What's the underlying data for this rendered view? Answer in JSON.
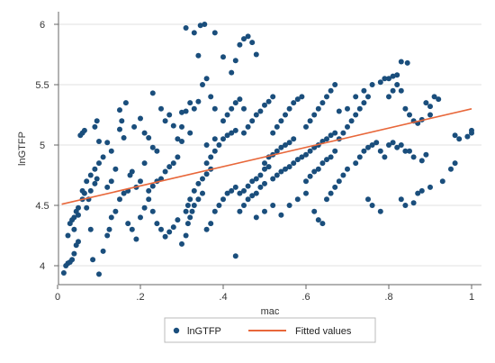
{
  "chart_data": {
    "type": "scatter",
    "xlabel": "mac",
    "ylabel": "lnGTFP",
    "xlim": [
      0,
      1
    ],
    "ylim": [
      3.85,
      6.05
    ],
    "x_ticks": [
      0,
      0.2,
      0.4,
      0.6,
      0.8,
      1
    ],
    "x_tick_labels": [
      "0",
      ".2",
      ".4",
      ".6",
      ".8",
      "1"
    ],
    "y_ticks": [
      4,
      4.5,
      5,
      5.5,
      6
    ],
    "y_tick_labels": [
      "4",
      "4.5",
      "5",
      "5.5",
      "6"
    ],
    "grid": "horizontal",
    "legend_position": "bottom",
    "colors": {
      "scatter": "#1a4e7c",
      "fit": "#e8673a",
      "grid": "#e2e2e2",
      "axis": "#666666"
    },
    "series": [
      {
        "name": "lnGTFP",
        "kind": "scatter",
        "points": [
          [
            0.015,
            3.94
          ],
          [
            0.02,
            4.0
          ],
          [
            0.025,
            4.02
          ],
          [
            0.03,
            4.03
          ],
          [
            0.035,
            4.05
          ],
          [
            0.04,
            4.1
          ],
          [
            0.045,
            4.17
          ],
          [
            0.05,
            4.2
          ],
          [
            0.025,
            4.25
          ],
          [
            0.03,
            4.35
          ],
          [
            0.035,
            4.38
          ],
          [
            0.04,
            4.4
          ],
          [
            0.045,
            4.45
          ],
          [
            0.05,
            4.48
          ],
          [
            0.06,
            4.55
          ],
          [
            0.065,
            4.6
          ],
          [
            0.04,
            4.3
          ],
          [
            0.05,
            4.42
          ],
          [
            0.06,
            4.62
          ],
          [
            0.07,
            4.7
          ],
          [
            0.08,
            4.75
          ],
          [
            0.09,
            4.8
          ],
          [
            0.1,
            4.85
          ],
          [
            0.11,
            4.9
          ],
          [
            0.055,
            5.08
          ],
          [
            0.06,
            5.1
          ],
          [
            0.065,
            5.12
          ],
          [
            0.09,
            5.15
          ],
          [
            0.095,
            5.2
          ],
          [
            0.1,
            5.03
          ],
          [
            0.12,
            5.02
          ],
          [
            0.13,
            4.95
          ],
          [
            0.08,
            4.3
          ],
          [
            0.085,
            4.05
          ],
          [
            0.1,
            3.93
          ],
          [
            0.11,
            4.12
          ],
          [
            0.12,
            4.25
          ],
          [
            0.125,
            4.3
          ],
          [
            0.13,
            4.4
          ],
          [
            0.14,
            4.45
          ],
          [
            0.07,
            4.48
          ],
          [
            0.075,
            4.55
          ],
          [
            0.08,
            4.62
          ],
          [
            0.09,
            4.68
          ],
          [
            0.095,
            4.72
          ],
          [
            0.12,
            4.65
          ],
          [
            0.13,
            4.7
          ],
          [
            0.14,
            4.8
          ],
          [
            0.15,
            4.55
          ],
          [
            0.16,
            4.6
          ],
          [
            0.17,
            4.62
          ],
          [
            0.175,
            4.75
          ],
          [
            0.18,
            4.78
          ],
          [
            0.19,
            4.65
          ],
          [
            0.2,
            4.7
          ],
          [
            0.21,
            4.85
          ],
          [
            0.15,
            5.13
          ],
          [
            0.155,
            5.2
          ],
          [
            0.16,
            5.06
          ],
          [
            0.17,
            4.35
          ],
          [
            0.18,
            4.3
          ],
          [
            0.19,
            4.22
          ],
          [
            0.2,
            4.4
          ],
          [
            0.21,
            4.48
          ],
          [
            0.15,
            5.29
          ],
          [
            0.165,
            5.35
          ],
          [
            0.185,
            5.15
          ],
          [
            0.2,
            5.22
          ],
          [
            0.21,
            5.1
          ],
          [
            0.22,
            5.06
          ],
          [
            0.23,
            4.98
          ],
          [
            0.24,
            4.95
          ],
          [
            0.22,
            4.62
          ],
          [
            0.23,
            4.66
          ],
          [
            0.24,
            4.7
          ],
          [
            0.25,
            4.72
          ],
          [
            0.26,
            4.78
          ],
          [
            0.27,
            4.82
          ],
          [
            0.28,
            4.85
          ],
          [
            0.29,
            4.9
          ],
          [
            0.22,
            4.55
          ],
          [
            0.23,
            4.45
          ],
          [
            0.24,
            4.35
          ],
          [
            0.25,
            4.3
          ],
          [
            0.26,
            4.24
          ],
          [
            0.27,
            4.28
          ],
          [
            0.28,
            4.32
          ],
          [
            0.29,
            4.38
          ],
          [
            0.23,
            5.43
          ],
          [
            0.25,
            5.3
          ],
          [
            0.26,
            5.2
          ],
          [
            0.27,
            5.25
          ],
          [
            0.28,
            5.16
          ],
          [
            0.29,
            5.05
          ],
          [
            0.3,
            5.03
          ],
          [
            0.3,
            5.27
          ],
          [
            0.3,
            4.18
          ],
          [
            0.31,
            4.25
          ],
          [
            0.315,
            4.35
          ],
          [
            0.32,
            4.4
          ],
          [
            0.325,
            4.45
          ],
          [
            0.33,
            4.5
          ],
          [
            0.34,
            4.55
          ],
          [
            0.35,
            4.6
          ],
          [
            0.31,
            4.45
          ],
          [
            0.315,
            4.5
          ],
          [
            0.32,
            4.55
          ],
          [
            0.33,
            4.62
          ],
          [
            0.34,
            4.68
          ],
          [
            0.35,
            4.72
          ],
          [
            0.36,
            4.76
          ],
          [
            0.37,
            4.8
          ],
          [
            0.31,
            5.28
          ],
          [
            0.32,
            5.35
          ],
          [
            0.33,
            5.3
          ],
          [
            0.34,
            5.36
          ],
          [
            0.35,
            5.5
          ],
          [
            0.36,
            5.55
          ],
          [
            0.37,
            5.4
          ],
          [
            0.38,
            5.3
          ],
          [
            0.31,
            5.97
          ],
          [
            0.33,
            5.93
          ],
          [
            0.345,
            5.99
          ],
          [
            0.355,
            6.0
          ],
          [
            0.38,
            5.93
          ],
          [
            0.34,
            5.74
          ],
          [
            0.3,
            5.15
          ],
          [
            0.32,
            5.1
          ],
          [
            0.36,
            4.3
          ],
          [
            0.37,
            4.35
          ],
          [
            0.38,
            4.45
          ],
          [
            0.39,
            4.5
          ],
          [
            0.4,
            4.55
          ],
          [
            0.41,
            4.6
          ],
          [
            0.42,
            4.62
          ],
          [
            0.43,
            4.65
          ],
          [
            0.36,
            4.85
          ],
          [
            0.37,
            4.9
          ],
          [
            0.38,
            4.95
          ],
          [
            0.39,
            5.0
          ],
          [
            0.4,
            5.05
          ],
          [
            0.41,
            5.08
          ],
          [
            0.42,
            5.1
          ],
          [
            0.43,
            5.12
          ],
          [
            0.36,
            5.0
          ],
          [
            0.38,
            5.05
          ],
          [
            0.4,
            5.2
          ],
          [
            0.41,
            5.25
          ],
          [
            0.42,
            5.3
          ],
          [
            0.43,
            5.35
          ],
          [
            0.44,
            5.38
          ],
          [
            0.45,
            5.3
          ],
          [
            0.4,
            5.73
          ],
          [
            0.42,
            5.6
          ],
          [
            0.43,
            5.7
          ],
          [
            0.44,
            5.83
          ],
          [
            0.45,
            5.88
          ],
          [
            0.46,
            5.9
          ],
          [
            0.47,
            5.85
          ],
          [
            0.48,
            5.75
          ],
          [
            0.43,
            4.08
          ],
          [
            0.44,
            4.45
          ],
          [
            0.45,
            4.5
          ],
          [
            0.46,
            4.55
          ],
          [
            0.47,
            4.58
          ],
          [
            0.48,
            4.6
          ],
          [
            0.49,
            4.65
          ],
          [
            0.5,
            4.68
          ],
          [
            0.44,
            4.6
          ],
          [
            0.45,
            4.62
          ],
          [
            0.46,
            4.66
          ],
          [
            0.47,
            4.7
          ],
          [
            0.48,
            4.72
          ],
          [
            0.49,
            4.75
          ],
          [
            0.5,
            4.8
          ],
          [
            0.51,
            4.82
          ],
          [
            0.45,
            5.1
          ],
          [
            0.46,
            5.15
          ],
          [
            0.47,
            5.2
          ],
          [
            0.48,
            5.25
          ],
          [
            0.49,
            5.28
          ],
          [
            0.5,
            5.33
          ],
          [
            0.51,
            5.36
          ],
          [
            0.52,
            5.4
          ],
          [
            0.48,
            4.4
          ],
          [
            0.5,
            4.45
          ],
          [
            0.52,
            4.5
          ],
          [
            0.54,
            4.42
          ],
          [
            0.56,
            4.5
          ],
          [
            0.58,
            4.55
          ],
          [
            0.6,
            4.6
          ],
          [
            0.62,
            4.45
          ],
          [
            0.5,
            4.85
          ],
          [
            0.51,
            4.9
          ],
          [
            0.52,
            4.92
          ],
          [
            0.53,
            4.95
          ],
          [
            0.54,
            4.98
          ],
          [
            0.55,
            5.0
          ],
          [
            0.56,
            5.02
          ],
          [
            0.57,
            5.05
          ],
          [
            0.52,
            4.72
          ],
          [
            0.53,
            4.75
          ],
          [
            0.54,
            4.78
          ],
          [
            0.55,
            4.8
          ],
          [
            0.56,
            4.82
          ],
          [
            0.57,
            4.85
          ],
          [
            0.58,
            4.88
          ],
          [
            0.59,
            4.9
          ],
          [
            0.52,
            5.1
          ],
          [
            0.53,
            5.15
          ],
          [
            0.54,
            5.2
          ],
          [
            0.55,
            5.25
          ],
          [
            0.56,
            5.3
          ],
          [
            0.57,
            5.35
          ],
          [
            0.58,
            5.38
          ],
          [
            0.59,
            5.4
          ],
          [
            0.6,
            4.92
          ],
          [
            0.61,
            4.95
          ],
          [
            0.62,
            4.98
          ],
          [
            0.63,
            5.0
          ],
          [
            0.64,
            5.03
          ],
          [
            0.65,
            5.05
          ],
          [
            0.66,
            5.08
          ],
          [
            0.67,
            5.1
          ],
          [
            0.6,
            4.7
          ],
          [
            0.61,
            4.74
          ],
          [
            0.62,
            4.78
          ],
          [
            0.63,
            4.8
          ],
          [
            0.64,
            4.85
          ],
          [
            0.65,
            4.88
          ],
          [
            0.66,
            4.9
          ],
          [
            0.67,
            4.95
          ],
          [
            0.6,
            5.15
          ],
          [
            0.61,
            5.2
          ],
          [
            0.62,
            5.25
          ],
          [
            0.63,
            5.3
          ],
          [
            0.64,
            5.35
          ],
          [
            0.65,
            5.4
          ],
          [
            0.66,
            5.45
          ],
          [
            0.67,
            5.5
          ],
          [
            0.63,
            4.38
          ],
          [
            0.64,
            4.35
          ],
          [
            0.65,
            4.55
          ],
          [
            0.66,
            4.6
          ],
          [
            0.67,
            4.65
          ],
          [
            0.68,
            4.7
          ],
          [
            0.69,
            4.75
          ],
          [
            0.7,
            4.8
          ],
          [
            0.68,
            5.05
          ],
          [
            0.69,
            5.1
          ],
          [
            0.7,
            5.15
          ],
          [
            0.71,
            5.2
          ],
          [
            0.72,
            5.25
          ],
          [
            0.73,
            5.3
          ],
          [
            0.74,
            5.35
          ],
          [
            0.75,
            5.4
          ],
          [
            0.68,
            5.28
          ],
          [
            0.7,
            5.3
          ],
          [
            0.72,
            5.4
          ],
          [
            0.74,
            5.45
          ],
          [
            0.76,
            5.5
          ],
          [
            0.78,
            5.52
          ],
          [
            0.8,
            5.55
          ],
          [
            0.82,
            5.58
          ],
          [
            0.72,
            4.85
          ],
          [
            0.73,
            4.9
          ],
          [
            0.74,
            4.95
          ],
          [
            0.75,
            4.98
          ],
          [
            0.76,
            5.0
          ],
          [
            0.77,
            5.02
          ],
          [
            0.78,
            4.95
          ],
          [
            0.79,
            4.9
          ],
          [
            0.75,
            4.55
          ],
          [
            0.76,
            4.5
          ],
          [
            0.78,
            4.45
          ],
          [
            0.8,
            5.0
          ],
          [
            0.81,
            5.02
          ],
          [
            0.82,
            4.98
          ],
          [
            0.83,
            5.0
          ],
          [
            0.84,
            4.95
          ],
          [
            0.8,
            5.4
          ],
          [
            0.81,
            5.45
          ],
          [
            0.82,
            5.5
          ],
          [
            0.83,
            5.45
          ],
          [
            0.84,
            5.3
          ],
          [
            0.85,
            5.25
          ],
          [
            0.86,
            5.2
          ],
          [
            0.87,
            5.18
          ],
          [
            0.83,
            5.69
          ],
          [
            0.845,
            5.68
          ],
          [
            0.81,
            5.57
          ],
          [
            0.79,
            5.55
          ],
          [
            0.85,
            4.95
          ],
          [
            0.86,
            4.9
          ],
          [
            0.88,
            4.87
          ],
          [
            0.89,
            4.92
          ],
          [
            0.83,
            4.55
          ],
          [
            0.84,
            4.5
          ],
          [
            0.86,
            4.52
          ],
          [
            0.87,
            4.6
          ],
          [
            0.88,
            4.62
          ],
          [
            0.9,
            4.65
          ],
          [
            0.88,
            5.21
          ],
          [
            0.9,
            5.25
          ],
          [
            0.91,
            5.4
          ],
          [
            0.92,
            5.38
          ],
          [
            0.93,
            4.7
          ],
          [
            0.95,
            4.8
          ],
          [
            0.96,
            4.85
          ],
          [
            0.97,
            5.05
          ],
          [
            0.99,
            5.07
          ],
          [
            1.0,
            5.1
          ],
          [
            1.0,
            5.12
          ],
          [
            0.96,
            5.08
          ],
          [
            0.89,
            5.35
          ],
          [
            0.9,
            5.32
          ]
        ]
      },
      {
        "name": "Fitted values",
        "kind": "line",
        "points": [
          [
            0.01,
            4.51
          ],
          [
            1.0,
            5.3
          ]
        ]
      }
    ]
  }
}
